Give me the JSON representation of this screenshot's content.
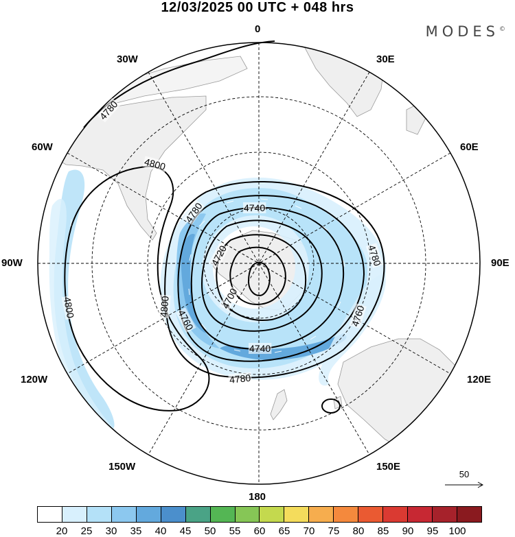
{
  "title": "12/03/2025  00 UTC  + 048 hrs",
  "brand": "MODES",
  "brand_mark": "©",
  "longitude_labels": {
    "top": "0",
    "bottom": "180",
    "left": "90W",
    "right": "90E",
    "upper_left": "30W",
    "upper_right": "30E",
    "mid_left": "60W",
    "mid_right": "60E",
    "lower_left": "120W",
    "lower_right": "120E",
    "bottom_left": "150W",
    "bottom_right": "150E"
  },
  "contour_labels": [
    "4780",
    "4800",
    "4780",
    "4740",
    "4720",
    "4700",
    "4800",
    "4760",
    "4740",
    "4780",
    "4760",
    "4780",
    "4800"
  ],
  "reference_vector": "50",
  "colorbar": {
    "ticks": [
      "20",
      "25",
      "30",
      "35",
      "40",
      "45",
      "50",
      "55",
      "60",
      "65",
      "70",
      "75",
      "80",
      "85",
      "90",
      "95",
      "100"
    ],
    "colors": [
      "#ffffff",
      "#d8f0fd",
      "#b4e1f8",
      "#8cc8ef",
      "#63a9dd",
      "#4b8fcc",
      "#4aa386",
      "#54b654",
      "#86c656",
      "#c4d94e",
      "#f4dc5c",
      "#f6ad4e",
      "#f4893d",
      "#ea5a32",
      "#da3a32",
      "#c72833",
      "#a6222b",
      "#8a1a1f"
    ]
  },
  "colors": {
    "land": "#efefef",
    "coast": "#999999",
    "jet_light": "#bfe3f7",
    "jet_mid": "#8ec6ec",
    "jet_dark": "#5ea6db"
  }
}
